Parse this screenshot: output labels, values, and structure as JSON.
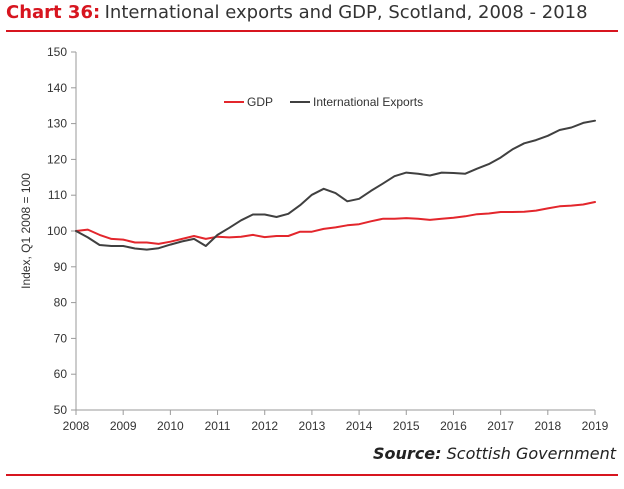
{
  "header": {
    "title_prefix": "Chart 36:",
    "title_text": "International exports and GDP, Scotland, 2008 - 2018"
  },
  "footer": {
    "source_label": "Source:",
    "source_text": "Scottish Government"
  },
  "colors": {
    "accent": "#d7151f",
    "gdp": "#e3262c",
    "exports": "#404040",
    "axis": "#9a9a9a"
  },
  "chart_data": {
    "type": "line",
    "title": "",
    "xlabel": "",
    "ylabel": "Index,  Q1 2008 = 100",
    "xlim": [
      2008,
      2019
    ],
    "ylim": [
      50,
      150
    ],
    "y_ticks": [
      "50",
      "60",
      "70",
      "80",
      "90",
      "100",
      "110",
      "120",
      "130",
      "140",
      "150"
    ],
    "x_ticks": [
      "2008",
      "2009",
      "2010",
      "2011",
      "2012",
      "2013",
      "2014",
      "2015",
      "2016",
      "2017",
      "2018",
      "2019"
    ],
    "legend_position": "top",
    "grid": false,
    "x": [
      2008.0,
      2008.25,
      2008.5,
      2008.75,
      2009.0,
      2009.25,
      2009.5,
      2009.75,
      2010.0,
      2010.25,
      2010.5,
      2010.75,
      2011.0,
      2011.25,
      2011.5,
      2011.75,
      2012.0,
      2012.25,
      2012.5,
      2012.75,
      2013.0,
      2013.25,
      2013.5,
      2013.75,
      2014.0,
      2014.25,
      2014.5,
      2014.75,
      2015.0,
      2015.25,
      2015.5,
      2015.75,
      2016.0,
      2016.25,
      2016.5,
      2016.75,
      2017.0,
      2017.25,
      2017.5,
      2017.75,
      2018.0,
      2018.25,
      2018.5,
      2018.75,
      2019.0
    ],
    "series": [
      {
        "name": "GDP",
        "values": [
          100,
          100.4,
          98.9,
          97.8,
          97.6,
          96.8,
          96.8,
          96.4,
          97,
          97.8,
          98.6,
          97.8,
          98.4,
          98.2,
          98.4,
          98.9,
          98.3,
          98.6,
          98.6,
          99.8,
          99.8,
          100.6,
          101,
          101.6,
          101.9,
          102.7,
          103.4,
          103.4,
          103.6,
          103.4,
          103.1,
          103.4,
          103.7,
          104.1,
          104.7,
          104.9,
          105.3,
          105.3,
          105.4,
          105.7,
          106.3,
          106.9,
          107.1,
          107.4,
          108.1
        ],
        "color": "#e3262c"
      },
      {
        "name": "International Exports",
        "values": [
          100,
          98.2,
          96.1,
          95.8,
          95.8,
          95.1,
          94.8,
          95.2,
          96.2,
          97.1,
          97.8,
          95.8,
          98.9,
          100.9,
          103,
          104.6,
          104.6,
          103.9,
          104.8,
          107.2,
          110.1,
          111.8,
          110.6,
          108.3,
          109,
          111.2,
          113.2,
          115.3,
          116.3,
          116,
          115.5,
          116.3,
          116.2,
          116,
          117.4,
          118.7,
          120.5,
          122.8,
          124.5,
          125.4,
          126.6,
          128.2,
          128.9,
          130.2,
          130.8
        ],
        "color": "#404040"
      }
    ]
  }
}
